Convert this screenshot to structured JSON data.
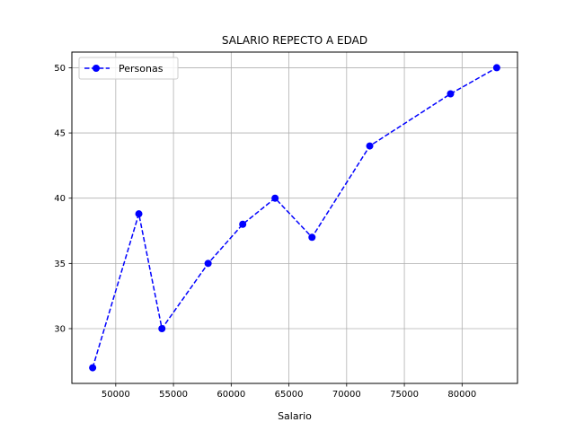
{
  "chart_data": {
    "type": "line",
    "title": "SALARIO REPECTO A EDAD",
    "xlabel": "Salario",
    "ylabel": "",
    "xlim": [
      46200,
      84800
    ],
    "ylim": [
      25.8,
      51.2
    ],
    "xticks": [
      50000,
      55000,
      60000,
      65000,
      70000,
      75000,
      80000
    ],
    "xtick_labels": [
      "50000",
      "55000",
      "60000",
      "65000",
      "70000",
      "75000",
      "80000"
    ],
    "yticks": [
      30,
      35,
      40,
      45,
      50
    ],
    "ytick_labels": [
      "30",
      "35",
      "40",
      "45",
      "50"
    ],
    "grid": true,
    "legend_position": "top-left",
    "series": [
      {
        "name": "Personas",
        "color": "#0000ff",
        "line_style": "dashed",
        "marker": "circle",
        "x": [
          48000,
          52000,
          54000,
          58000,
          61000,
          63800,
          67000,
          72000,
          79000,
          83000
        ],
        "y": [
          27,
          38.8,
          30,
          35,
          38,
          40,
          37,
          44,
          48,
          50
        ]
      }
    ]
  }
}
